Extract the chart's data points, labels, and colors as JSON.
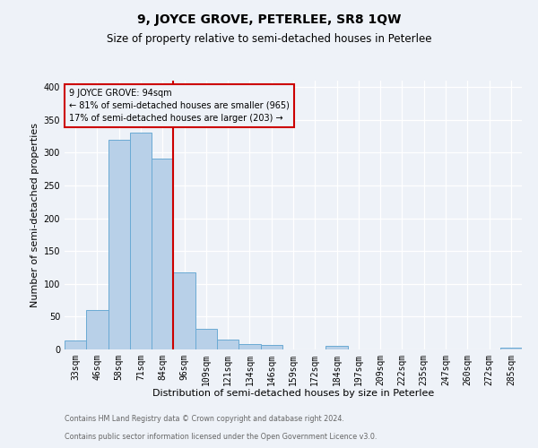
{
  "title": "9, JOYCE GROVE, PETERLEE, SR8 1QW",
  "subtitle": "Size of property relative to semi-detached houses in Peterlee",
  "xlabel": "Distribution of semi-detached houses by size in Peterlee",
  "ylabel": "Number of semi-detached properties",
  "footnote1": "Contains HM Land Registry data © Crown copyright and database right 2024.",
  "footnote2": "Contains public sector information licensed under the Open Government Licence v3.0.",
  "bin_labels": [
    "33sqm",
    "46sqm",
    "58sqm",
    "71sqm",
    "84sqm",
    "96sqm",
    "109sqm",
    "121sqm",
    "134sqm",
    "146sqm",
    "159sqm",
    "172sqm",
    "184sqm",
    "197sqm",
    "209sqm",
    "222sqm",
    "235sqm",
    "247sqm",
    "260sqm",
    "272sqm",
    "285sqm"
  ],
  "bin_counts": [
    14,
    60,
    320,
    331,
    291,
    117,
    32,
    15,
    8,
    7,
    0,
    0,
    5,
    0,
    0,
    0,
    0,
    0,
    0,
    0,
    3
  ],
  "bar_color": "#b8d0e8",
  "bar_edge_color": "#6aaad4",
  "vline_index": 5,
  "pct_smaller": 81,
  "pct_larger": 17,
  "n_smaller": 965,
  "n_larger": 203,
  "property_sqm": 94,
  "annotation_box_color": "#cc0000",
  "vline_color": "#cc0000",
  "ylim": [
    0,
    410
  ],
  "yticks": [
    0,
    50,
    100,
    150,
    200,
    250,
    300,
    350,
    400
  ],
  "bg_color": "#eef2f8",
  "grid_color": "#ffffff",
  "title_fontsize": 10,
  "subtitle_fontsize": 8.5,
  "axis_label_fontsize": 8,
  "tick_fontsize": 7,
  "annot_fontsize": 7,
  "footnote_fontsize": 5.8,
  "footnote_color": "#666666"
}
